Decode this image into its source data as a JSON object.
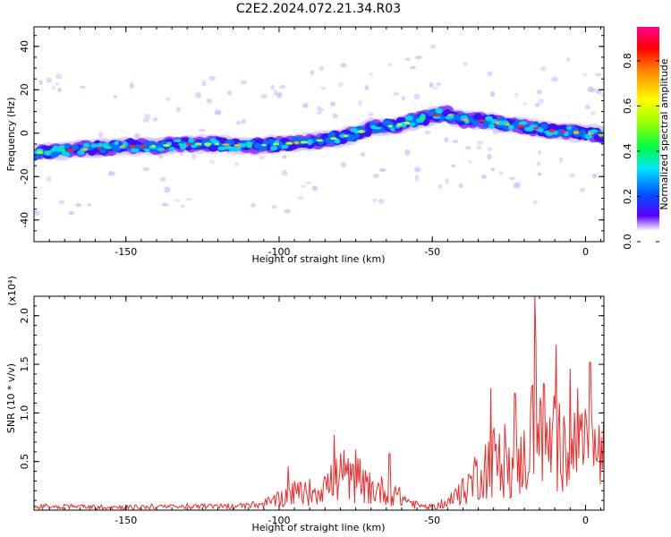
{
  "title": "C2E2.2024.072.21.34.R03",
  "chart_data": [
    {
      "type": "heatmap",
      "xlabel": "Height of straight line (km)",
      "ylabel": "Frequency (Hz)",
      "xlim": [
        -180,
        6
      ],
      "ylim": [
        -50,
        49
      ],
      "x_ticks": [
        -150,
        -100,
        -50,
        0
      ],
      "y_ticks": [
        -40,
        -20,
        0,
        20,
        40
      ],
      "colorbar": {
        "label": "Normalized spectral amplitude",
        "range": [
          0,
          0.95
        ],
        "ticks": [
          0.0,
          0.2,
          0.4,
          0.6,
          0.8
        ],
        "colors": [
          "#ffffff",
          "#5a00ff",
          "#0050ff",
          "#00e5ff",
          "#00ff40",
          "#a0ff00",
          "#ffff00",
          "#ff8000",
          "#ff0000",
          "#ff0090"
        ]
      },
      "ridge": {
        "x": [
          -180,
          -170,
          -160,
          -150,
          -140,
          -130,
          -120,
          -110,
          -100,
          -90,
          -80,
          -75,
          -70,
          -65,
          -60,
          -55,
          -50,
          -45,
          -40,
          -35,
          -30,
          -20,
          -10,
          0,
          6
        ],
        "y": [
          -9,
          -8,
          -7,
          -6,
          -6,
          -5,
          -5,
          -6,
          -5,
          -4,
          -2,
          0,
          2,
          3,
          4,
          6,
          8,
          9,
          6,
          6,
          5,
          3,
          1,
          0,
          -1
        ]
      }
    },
    {
      "type": "line",
      "xlabel": "Height of straight line (km)",
      "ylabel": "SNR (10 * v/v)",
      "y_multiplier": "(x10⁴)",
      "xlim": [
        -180,
        6
      ],
      "ylim": [
        0,
        2.2
      ],
      "x_ticks": [
        -150,
        -100,
        -50,
        0
      ],
      "y_ticks": [
        0.5,
        1.0,
        1.5,
        2.0
      ],
      "color": "#ee2b2b",
      "envelope": {
        "x": [
          -180,
          -150,
          -110,
          -102,
          -95,
          -90,
          -85,
          -80,
          -75,
          -70,
          -65,
          -60,
          -55,
          -50,
          -45,
          -40,
          -35,
          -30,
          -25,
          -20,
          -16,
          -12,
          -8,
          -4,
          0,
          3,
          6
        ],
        "y": [
          0.06,
          0.05,
          0.06,
          0.14,
          0.28,
          0.3,
          0.38,
          0.55,
          0.45,
          0.34,
          0.32,
          0.2,
          0.08,
          0.05,
          0.12,
          0.3,
          0.62,
          0.82,
          0.68,
          0.82,
          1.6,
          1.05,
          1.05,
          1.0,
          1.05,
          0.95,
          0.85
        ],
        "peaks": [
          [
            -16.5,
            2.2
          ],
          [
            -9.5,
            1.7
          ],
          [
            -5,
            1.45
          ],
          [
            1.5,
            1.52
          ],
          [
            -31,
            1.25
          ],
          [
            -82,
            0.77
          ],
          [
            -75,
            0.62
          ],
          [
            -64,
            0.58
          ],
          [
            -97,
            0.45
          ],
          [
            -23,
            1.2
          ]
        ]
      }
    }
  ]
}
